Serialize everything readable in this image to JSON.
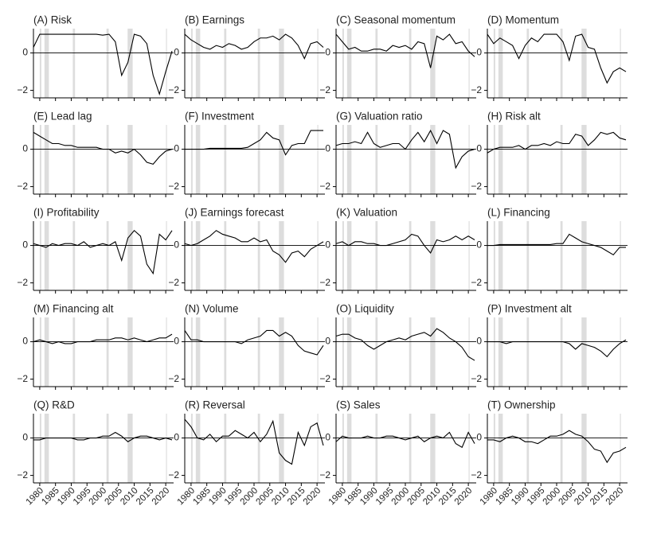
{
  "chart_data": {
    "type": "line",
    "x": [
      1978,
      1980,
      1982,
      1984,
      1986,
      1988,
      1990,
      1992,
      1994,
      1996,
      1998,
      2000,
      2002,
      2004,
      2006,
      2008,
      2010,
      2012,
      2014,
      2016,
      2018,
      2020,
      2022
    ],
    "xlim": [
      1978,
      2022.5
    ],
    "xticks": [
      1980,
      1985,
      1990,
      1995,
      2000,
      2005,
      2010,
      2015,
      2020
    ],
    "ylim": [
      -2.4,
      1.3
    ],
    "yticks": [
      {
        "value": -2,
        "label": "−2"
      },
      0
    ],
    "color": "#000000",
    "shade_color": "#dddddd",
    "shaded_periods": [
      [
        1980.0,
        1980.5
      ],
      [
        1981.5,
        1982.9
      ],
      [
        1990.5,
        1991.2
      ],
      [
        2001.2,
        2001.9
      ],
      [
        2007.9,
        2009.5
      ],
      [
        2020.1,
        2020.4
      ]
    ],
    "panels": [
      {
        "title": "(A) Risk",
        "values": [
          0.3,
          1.0,
          1.0,
          1.0,
          1.0,
          1.0,
          1.0,
          1.0,
          1.0,
          1.0,
          1.0,
          0.95,
          1.0,
          0.6,
          -1.2,
          -0.5,
          1.0,
          0.9,
          0.5,
          -1.2,
          -2.2,
          -1.0,
          0.1
        ]
      },
      {
        "title": "(B) Earnings",
        "values": [
          1.0,
          0.7,
          0.5,
          0.3,
          0.2,
          0.4,
          0.3,
          0.5,
          0.4,
          0.2,
          0.3,
          0.6,
          0.8,
          0.8,
          0.9,
          0.7,
          1.0,
          0.8,
          0.4,
          -0.3,
          0.5,
          0.6,
          0.3
        ]
      },
      {
        "title": "(C) Seasonal momentum",
        "values": [
          1.0,
          0.6,
          0.2,
          0.3,
          0.1,
          0.1,
          0.2,
          0.2,
          0.1,
          0.4,
          0.3,
          0.4,
          0.2,
          0.6,
          0.5,
          -0.8,
          0.9,
          0.7,
          1.0,
          0.5,
          0.6,
          0.1,
          -0.2
        ]
      },
      {
        "title": "(D) Momentum",
        "values": [
          1.0,
          0.5,
          0.8,
          0.6,
          0.4,
          -0.3,
          0.4,
          0.8,
          0.6,
          1.0,
          1.0,
          1.0,
          0.6,
          -0.4,
          0.9,
          1.0,
          0.3,
          0.2,
          -0.8,
          -1.6,
          -1.0,
          -0.8,
          -1.0
        ]
      },
      {
        "title": "(E) Lead lag",
        "values": [
          0.9,
          0.7,
          0.5,
          0.3,
          0.3,
          0.2,
          0.2,
          0.1,
          0.1,
          0.1,
          0.1,
          0.0,
          0.0,
          -0.2,
          -0.1,
          -0.2,
          0.0,
          -0.3,
          -0.7,
          -0.8,
          -0.4,
          -0.1,
          0.0
        ]
      },
      {
        "title": "(F) Investment",
        "values": [
          0.0,
          0.0,
          0.0,
          0.0,
          0.05,
          0.05,
          0.05,
          0.05,
          0.05,
          0.05,
          0.1,
          0.3,
          0.5,
          0.9,
          0.6,
          0.5,
          -0.3,
          0.2,
          0.3,
          0.3,
          1.0,
          1.0,
          1.0
        ]
      },
      {
        "title": "(G) Valuation ratio",
        "values": [
          0.2,
          0.3,
          0.3,
          0.4,
          0.3,
          0.9,
          0.3,
          0.1,
          0.2,
          0.3,
          0.3,
          0.0,
          0.5,
          0.9,
          0.4,
          1.0,
          0.3,
          1.0,
          0.8,
          -1.0,
          -0.4,
          -0.1,
          0.0
        ]
      },
      {
        "title": "(H) Risk alt",
        "values": [
          -0.2,
          0.0,
          0.1,
          0.1,
          0.1,
          0.2,
          0.0,
          0.2,
          0.2,
          0.3,
          0.2,
          0.4,
          0.3,
          0.3,
          0.8,
          0.7,
          0.2,
          0.5,
          0.9,
          0.8,
          0.9,
          0.6,
          0.5
        ]
      },
      {
        "title": "(I) Profitability",
        "values": [
          0.1,
          0.0,
          -0.1,
          0.1,
          0.0,
          0.1,
          0.1,
          0.0,
          0.2,
          -0.1,
          0.0,
          0.1,
          0.0,
          0.2,
          -0.8,
          0.4,
          0.8,
          0.5,
          -1.0,
          -1.5,
          0.6,
          0.3,
          0.8
        ]
      },
      {
        "title": "(J) Earnings forecast",
        "values": [
          0.1,
          0.0,
          0.1,
          0.3,
          0.5,
          0.8,
          0.6,
          0.5,
          0.4,
          0.2,
          0.2,
          0.4,
          0.2,
          0.3,
          -0.3,
          -0.5,
          -0.9,
          -0.4,
          -0.3,
          -0.6,
          -0.2,
          0.0,
          0.2
        ]
      },
      {
        "title": "(K) Valuation",
        "values": [
          0.1,
          0.2,
          0.0,
          0.2,
          0.2,
          0.1,
          0.1,
          0.0,
          0.0,
          0.1,
          0.2,
          0.3,
          0.6,
          0.5,
          0.0,
          -0.4,
          0.3,
          0.2,
          0.3,
          0.5,
          0.3,
          0.5,
          0.3
        ]
      },
      {
        "title": "(L) Financing",
        "values": [
          0.0,
          0.0,
          0.05,
          0.05,
          0.05,
          0.05,
          0.05,
          0.05,
          0.05,
          0.05,
          0.05,
          0.1,
          0.1,
          0.6,
          0.4,
          0.2,
          0.1,
          0.0,
          -0.1,
          -0.3,
          -0.5,
          -0.1,
          -0.1
        ]
      },
      {
        "title": "(M) Financing alt",
        "values": [
          0.0,
          0.1,
          0.0,
          -0.1,
          0.0,
          -0.1,
          -0.1,
          0.0,
          0.0,
          0.0,
          0.1,
          0.1,
          0.1,
          0.2,
          0.2,
          0.1,
          0.2,
          0.1,
          0.0,
          0.1,
          0.2,
          0.2,
          0.4
        ]
      },
      {
        "title": "(N) Volume",
        "values": [
          0.6,
          0.1,
          0.1,
          0.0,
          0.0,
          0.0,
          0.0,
          0.0,
          0.0,
          -0.1,
          0.1,
          0.2,
          0.3,
          0.6,
          0.6,
          0.3,
          0.5,
          0.3,
          -0.2,
          -0.5,
          -0.6,
          -0.7,
          -0.2
        ]
      },
      {
        "title": "(O) Liquidity",
        "values": [
          0.3,
          0.4,
          0.4,
          0.2,
          0.1,
          -0.2,
          -0.4,
          -0.2,
          0.0,
          0.1,
          0.2,
          0.1,
          0.3,
          0.4,
          0.5,
          0.3,
          0.7,
          0.5,
          0.2,
          0.0,
          -0.3,
          -0.8,
          -1.0
        ]
      },
      {
        "title": "(P) Investment alt",
        "values": [
          0.0,
          0.0,
          0.0,
          -0.1,
          0.0,
          0.0,
          0.0,
          0.0,
          0.0,
          0.0,
          0.0,
          0.0,
          0.0,
          -0.1,
          -0.4,
          -0.1,
          -0.2,
          -0.3,
          -0.5,
          -0.8,
          -0.4,
          -0.1,
          0.1
        ]
      },
      {
        "title": "(Q) R&D",
        "values": [
          -0.1,
          -0.1,
          0.0,
          0.0,
          0.0,
          0.0,
          0.0,
          -0.1,
          -0.1,
          0.0,
          0.0,
          0.1,
          0.1,
          0.3,
          0.1,
          -0.2,
          0.0,
          0.1,
          0.1,
          0.0,
          -0.1,
          0.0,
          -0.1
        ]
      },
      {
        "title": "(R) Reversal",
        "values": [
          1.0,
          0.6,
          0.0,
          -0.1,
          0.2,
          -0.2,
          0.1,
          0.1,
          0.4,
          0.2,
          0.0,
          0.3,
          -0.2,
          0.2,
          0.9,
          -0.8,
          -1.2,
          -1.4,
          0.3,
          -0.4,
          0.6,
          0.8,
          -0.4
        ]
      },
      {
        "title": "(S) Sales",
        "values": [
          -0.2,
          0.1,
          0.0,
          0.0,
          0.0,
          0.1,
          0.0,
          0.0,
          0.1,
          0.1,
          0.0,
          -0.1,
          0.0,
          0.1,
          -0.2,
          0.0,
          0.1,
          0.0,
          0.3,
          -0.3,
          -0.5,
          0.3,
          -0.3
        ]
      },
      {
        "title": "(T) Ownership",
        "values": [
          -0.1,
          -0.1,
          -0.2,
          0.0,
          0.1,
          0.0,
          -0.2,
          -0.2,
          -0.3,
          -0.1,
          0.1,
          0.1,
          0.2,
          0.4,
          0.2,
          0.1,
          -0.2,
          -0.6,
          -0.7,
          -1.3,
          -0.8,
          -0.7,
          -0.5
        ]
      }
    ]
  }
}
